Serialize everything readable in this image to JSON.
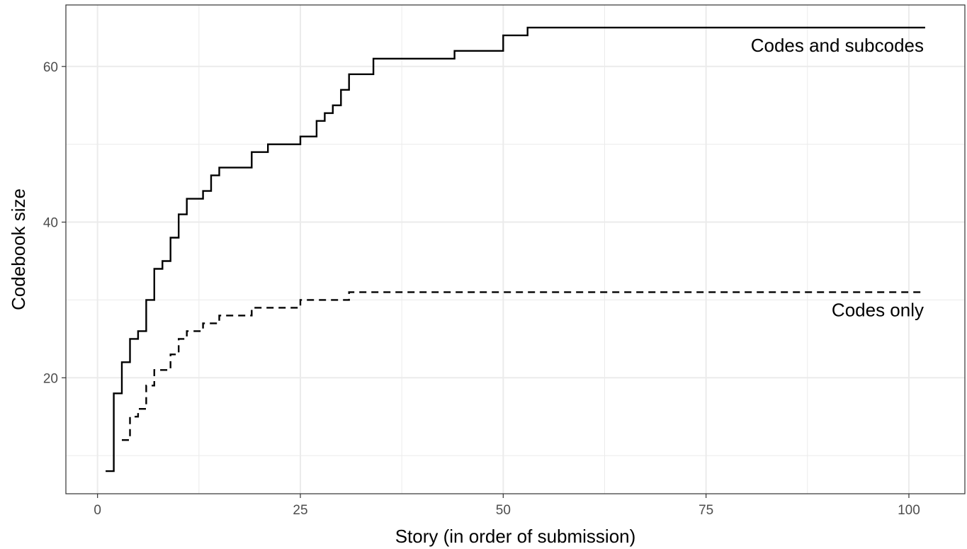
{
  "chart_data": {
    "type": "line",
    "title": "",
    "xlabel": "Story (in order of submission)",
    "ylabel": "Codebook size",
    "xlim": [
      -3.9,
      106.9
    ],
    "ylim": [
      5.1,
      67.9
    ],
    "x_ticks": [
      0,
      25,
      50,
      75,
      100
    ],
    "x_tick_labels": [
      "0",
      "25",
      "50",
      "75",
      "100"
    ],
    "x_minor_ticks": [
      12.5,
      37.5,
      62.5,
      87.5
    ],
    "y_ticks": [
      20,
      40,
      60
    ],
    "y_tick_labels": [
      "20",
      "40",
      "60"
    ],
    "y_minor_ticks": [
      10,
      30,
      50
    ],
    "grid": true,
    "legend": "direct labels",
    "series": [
      {
        "name": "Codes and subcodes",
        "line_style": "solid",
        "step": true,
        "label_position": "top-right",
        "x": [
          1,
          2,
          3,
          4,
          5,
          6,
          7,
          8,
          9,
          10,
          11,
          13,
          14,
          15,
          19,
          21,
          25,
          27,
          28,
          29,
          30,
          31,
          34,
          44,
          50,
          53,
          102
        ],
        "y": [
          8,
          18,
          22,
          25,
          26,
          30,
          34,
          35,
          38,
          41,
          43,
          44,
          46,
          47,
          49,
          50,
          51,
          53,
          54,
          55,
          57,
          59,
          61,
          62,
          64,
          65,
          65
        ]
      },
      {
        "name": "Codes only",
        "line_style": "dashed",
        "step": true,
        "label_position": "right",
        "x": [
          3,
          4,
          5,
          6,
          7,
          9,
          10,
          11,
          12,
          13,
          15,
          19,
          20,
          25,
          31,
          102
        ],
        "y": [
          12,
          15,
          16,
          19,
          21,
          23,
          25,
          26,
          26,
          27,
          28,
          29,
          29,
          30,
          31,
          31
        ]
      }
    ]
  },
  "colors": {
    "background": "#ffffff",
    "panel_border": "#333333",
    "grid": "#ebebeb",
    "line": "#000000",
    "tick_label": "#4d4d4d"
  }
}
